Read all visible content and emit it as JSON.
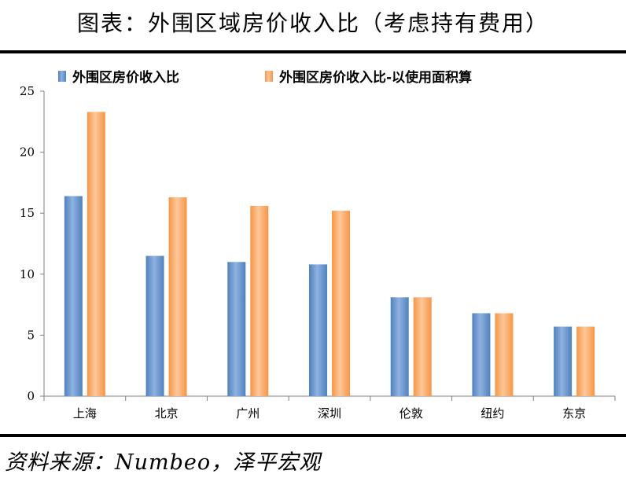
{
  "page": {
    "title": "图表：外围区域房价收入比（考虑持有费用）",
    "source": "资料来源：Numbeo，泽平宏观"
  },
  "colors": {
    "series_1": "#4F81BD",
    "series_1_light": "#8FB2E0",
    "series_2": "#F79646",
    "series_2_light": "#FCC79A"
  },
  "chart_data": {
    "type": "bar",
    "categories": [
      "上海",
      "北京",
      "广州",
      "深圳",
      "伦敦",
      "纽约",
      "东京"
    ],
    "series": [
      {
        "name": "外围区房价收入比",
        "values": [
          16.4,
          11.5,
          11.0,
          10.8,
          8.1,
          6.8,
          5.7
        ]
      },
      {
        "name": "外围区房价收入比-以使用面积算",
        "values": [
          23.3,
          16.3,
          15.6,
          15.2,
          8.1,
          6.8,
          5.7
        ]
      }
    ],
    "ylim": [
      0,
      25
    ],
    "yticks": [
      "0",
      "5",
      "10",
      "15",
      "20",
      "25"
    ],
    "ytick_values": [
      0,
      5,
      10,
      15,
      20,
      25
    ],
    "legend_position": "top",
    "grid": false
  }
}
